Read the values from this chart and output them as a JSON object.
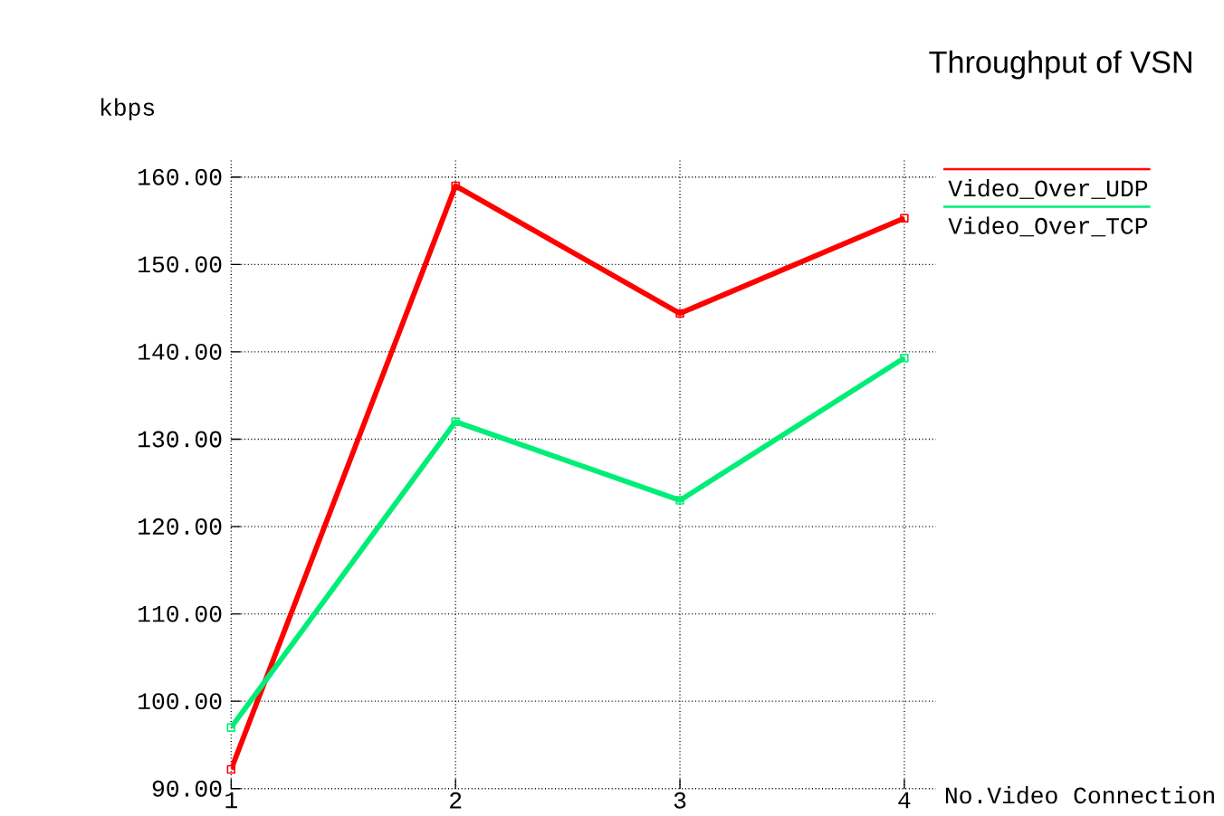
{
  "chart_data": {
    "type": "line",
    "title": "Throughput of VSN",
    "xlabel": "No.Video Connection",
    "ylabel": "kbps",
    "x": [
      1,
      2,
      3,
      4
    ],
    "series": [
      {
        "name": "Video_Over_UDP",
        "color": "#ff0000",
        "values": [
          92.2,
          159,
          144.4,
          155.3
        ]
      },
      {
        "name": "Video_Over_TCP",
        "color": "#00ee77",
        "values": [
          97,
          132,
          123,
          139.3
        ]
      }
    ],
    "xlim": [
      1,
      4.14
    ],
    "ylim": [
      90,
      162
    ],
    "xticks": [
      1,
      2,
      3,
      4
    ],
    "yticks": [
      {
        "value": 90,
        "label": "90.00"
      },
      {
        "value": 100,
        "label": "100.00"
      },
      {
        "value": 110,
        "label": "110.00"
      },
      {
        "value": 120,
        "label": "120.00"
      },
      {
        "value": 130,
        "label": "130.00"
      },
      {
        "value": 140,
        "label": "140.00"
      },
      {
        "value": 150,
        "label": "150.00"
      },
      {
        "value": 160,
        "label": "160.00"
      }
    ],
    "grid": true,
    "legend": "top right",
    "marker": "square",
    "line_style": "solid"
  }
}
